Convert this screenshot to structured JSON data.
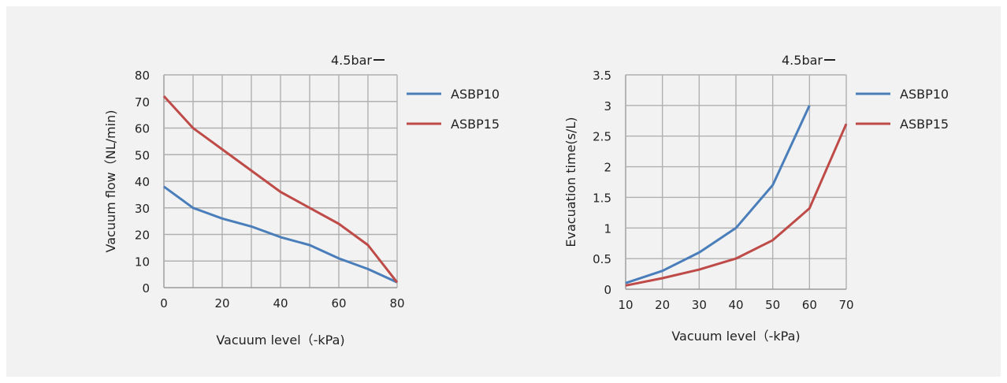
{
  "chart_data": [
    {
      "type": "line",
      "annotation": "4.5bar",
      "xlabel": "Vacuum level（-kPa)",
      "ylabel": "Vacuum flow（NL/min)",
      "xlim": [
        0,
        80
      ],
      "ylim": [
        0,
        80
      ],
      "x_ticks": [
        0,
        20,
        40,
        60,
        80
      ],
      "x_grid_step": 10,
      "y_ticks": [
        0,
        10,
        20,
        30,
        40,
        50,
        60,
        70,
        80
      ],
      "y_tick_labels": [
        "0",
        "10",
        "20",
        "30",
        "40",
        "50",
        "60",
        "70",
        "80"
      ],
      "grid": true,
      "legend_position": "right",
      "series": [
        {
          "name": "ASBP10",
          "color": "#4a7ebb",
          "x": [
            0,
            10,
            20,
            30,
            40,
            50,
            60,
            70,
            80
          ],
          "y": [
            38,
            30,
            26,
            23,
            19,
            16,
            11,
            7,
            2
          ]
        },
        {
          "name": "ASBP15",
          "color": "#be4b48",
          "x": [
            0,
            10,
            20,
            30,
            40,
            50,
            60,
            70,
            80
          ],
          "y": [
            72,
            60,
            52,
            44,
            36,
            30,
            24,
            16,
            2
          ]
        }
      ]
    },
    {
      "type": "line",
      "annotation": "4.5bar",
      "xlabel": "Vacuum level（-kPa)",
      "ylabel": "Evacuation time(s/L)",
      "xlim": [
        10,
        70
      ],
      "ylim": [
        0,
        3.5
      ],
      "x_ticks": [
        10,
        20,
        30,
        40,
        50,
        60,
        70
      ],
      "x_grid_step": 10,
      "y_ticks": [
        0,
        0.5,
        1,
        1.5,
        2,
        2.5,
        3,
        3.5
      ],
      "y_tick_labels": [
        "0",
        "0.5",
        "1",
        "1.5",
        "2",
        "2.5",
        "3",
        "3.5"
      ],
      "grid": true,
      "legend_position": "right",
      "series": [
        {
          "name": "ASBP10",
          "color": "#4a7ebb",
          "x": [
            10,
            20,
            30,
            40,
            50,
            60
          ],
          "y": [
            0.1,
            0.3,
            0.6,
            1.0,
            1.7,
            3.0
          ]
        },
        {
          "name": "ASBP15",
          "color": "#be4b48",
          "x": [
            10,
            20,
            30,
            40,
            50,
            60,
            70
          ],
          "y": [
            0.06,
            0.18,
            0.32,
            0.5,
            0.8,
            1.32,
            2.7
          ]
        }
      ]
    }
  ]
}
